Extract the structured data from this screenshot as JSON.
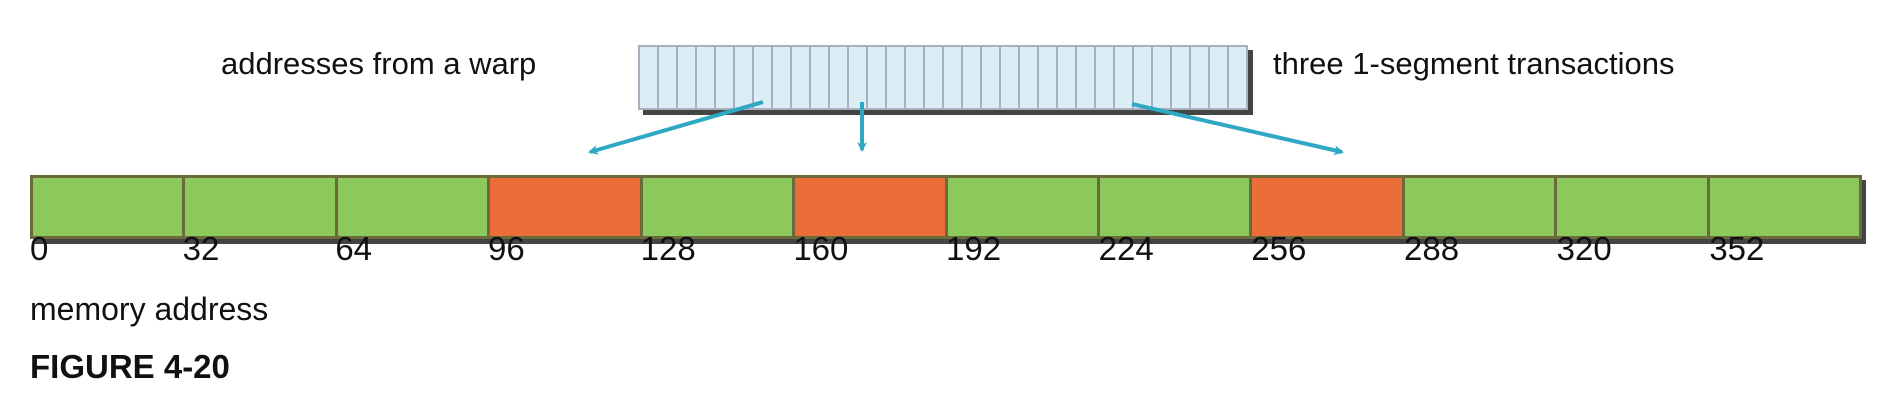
{
  "warp_label": "addresses from a warp",
  "transactions_label": "three 1-segment transactions",
  "warp_thread_count": 32,
  "segments": [
    "unused",
    "unused",
    "unused",
    "accessed",
    "unused",
    "accessed",
    "unused",
    "unused",
    "accessed",
    "unused",
    "unused",
    "unused"
  ],
  "tick_labels": [
    "0",
    "32",
    "64",
    "96",
    "128",
    "160",
    "192",
    "224",
    "256",
    "288",
    "320",
    "352"
  ],
  "axis_label": "memory address",
  "figure_label": "FIGURE 4-20",
  "colors": {
    "unused": "#8dc85c",
    "accessed": "#eb6d37",
    "warp_cell": "#dbeef5",
    "arrow": "#2fa8c4"
  }
}
